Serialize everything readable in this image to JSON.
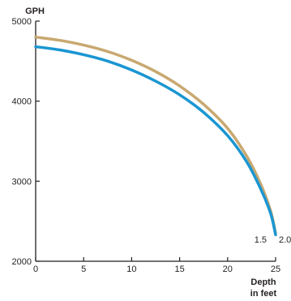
{
  "chart_data": {
    "type": "line",
    "ylabel": "GPH",
    "xlabel_lines": [
      "Depth",
      "in feet"
    ],
    "xlim": [
      0,
      25
    ],
    "ylim": [
      2000,
      5000
    ],
    "xticks": [
      0,
      5,
      10,
      15,
      20,
      25
    ],
    "yticks": [
      2000,
      3000,
      4000,
      5000
    ],
    "grid": false,
    "legend": "none",
    "series": [
      {
        "name": "2.0",
        "color": "#c8a870",
        "x": [
          0,
          2.5,
          5,
          7.5,
          10,
          12.5,
          15,
          17.5,
          20,
          22,
          23.5,
          24.5,
          25
        ],
        "y": [
          4800,
          4760,
          4700,
          4620,
          4510,
          4370,
          4190,
          3960,
          3660,
          3310,
          2950,
          2620,
          2350
        ]
      },
      {
        "name": "1.5",
        "color": "#1a96d2",
        "x": [
          0,
          2.5,
          5,
          7.5,
          10,
          12.5,
          15,
          17.5,
          20,
          22,
          23.5,
          24.5,
          25
        ],
        "y": [
          4680,
          4640,
          4580,
          4500,
          4390,
          4250,
          4080,
          3860,
          3570,
          3240,
          2890,
          2590,
          2330
        ]
      }
    ]
  }
}
